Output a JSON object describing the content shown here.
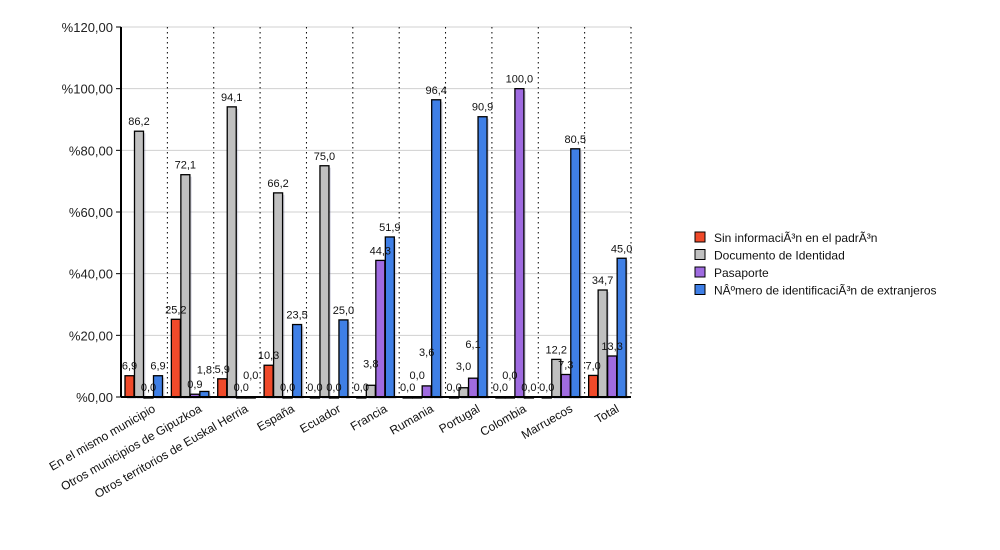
{
  "chart_data": {
    "type": "bar",
    "title": "",
    "xlabel": "",
    "ylabel": "",
    "ylim": [
      0,
      120
    ],
    "yticks": [
      "%0,00",
      "%20,00",
      "%40,00",
      "%60,00",
      "%80,00",
      "%100,00",
      "%120,00"
    ],
    "ytick_values": [
      0,
      20,
      40,
      60,
      80,
      100,
      120
    ],
    "categories": [
      "En el mismo municipio",
      "Otros municipios de Gipuzkoa",
      "Otros territorios de Euskal Herria",
      "España",
      "Ecuador",
      "Francia",
      "Rumania",
      "Portugal",
      "Colombia",
      "Marruecos",
      "Total"
    ],
    "legend_position": "right",
    "series": [
      {
        "name": "Sin informaciÃ³n en el padrÃ³n",
        "color": "#f04a2a",
        "values": [
          6.9,
          25.2,
          5.9,
          10.3,
          0.0,
          0.0,
          0.0,
          0.0,
          0.0,
          0.0,
          7.0
        ]
      },
      {
        "name": "Documento de Identidad",
        "color": "#c0c0c0",
        "values": [
          86.2,
          72.1,
          94.1,
          66.2,
          75.0,
          3.8,
          0.0,
          3.0,
          0.0,
          12.2,
          34.7
        ]
      },
      {
        "name": "Pasaporte",
        "color": "#9f6be0",
        "values": [
          0.0,
          0.9,
          0.0,
          0.0,
          0.0,
          44.3,
          3.6,
          6.1,
          100.0,
          7.3,
          13.3
        ]
      },
      {
        "name": "NÂºmero de identificaciÃ³n de extranjeros",
        "color": "#3f7fe6",
        "values": [
          6.9,
          1.8,
          0.0,
          23.5,
          25.0,
          51.9,
          96.4,
          90.9,
          0.0,
          80.5,
          45.0
        ]
      }
    ]
  }
}
